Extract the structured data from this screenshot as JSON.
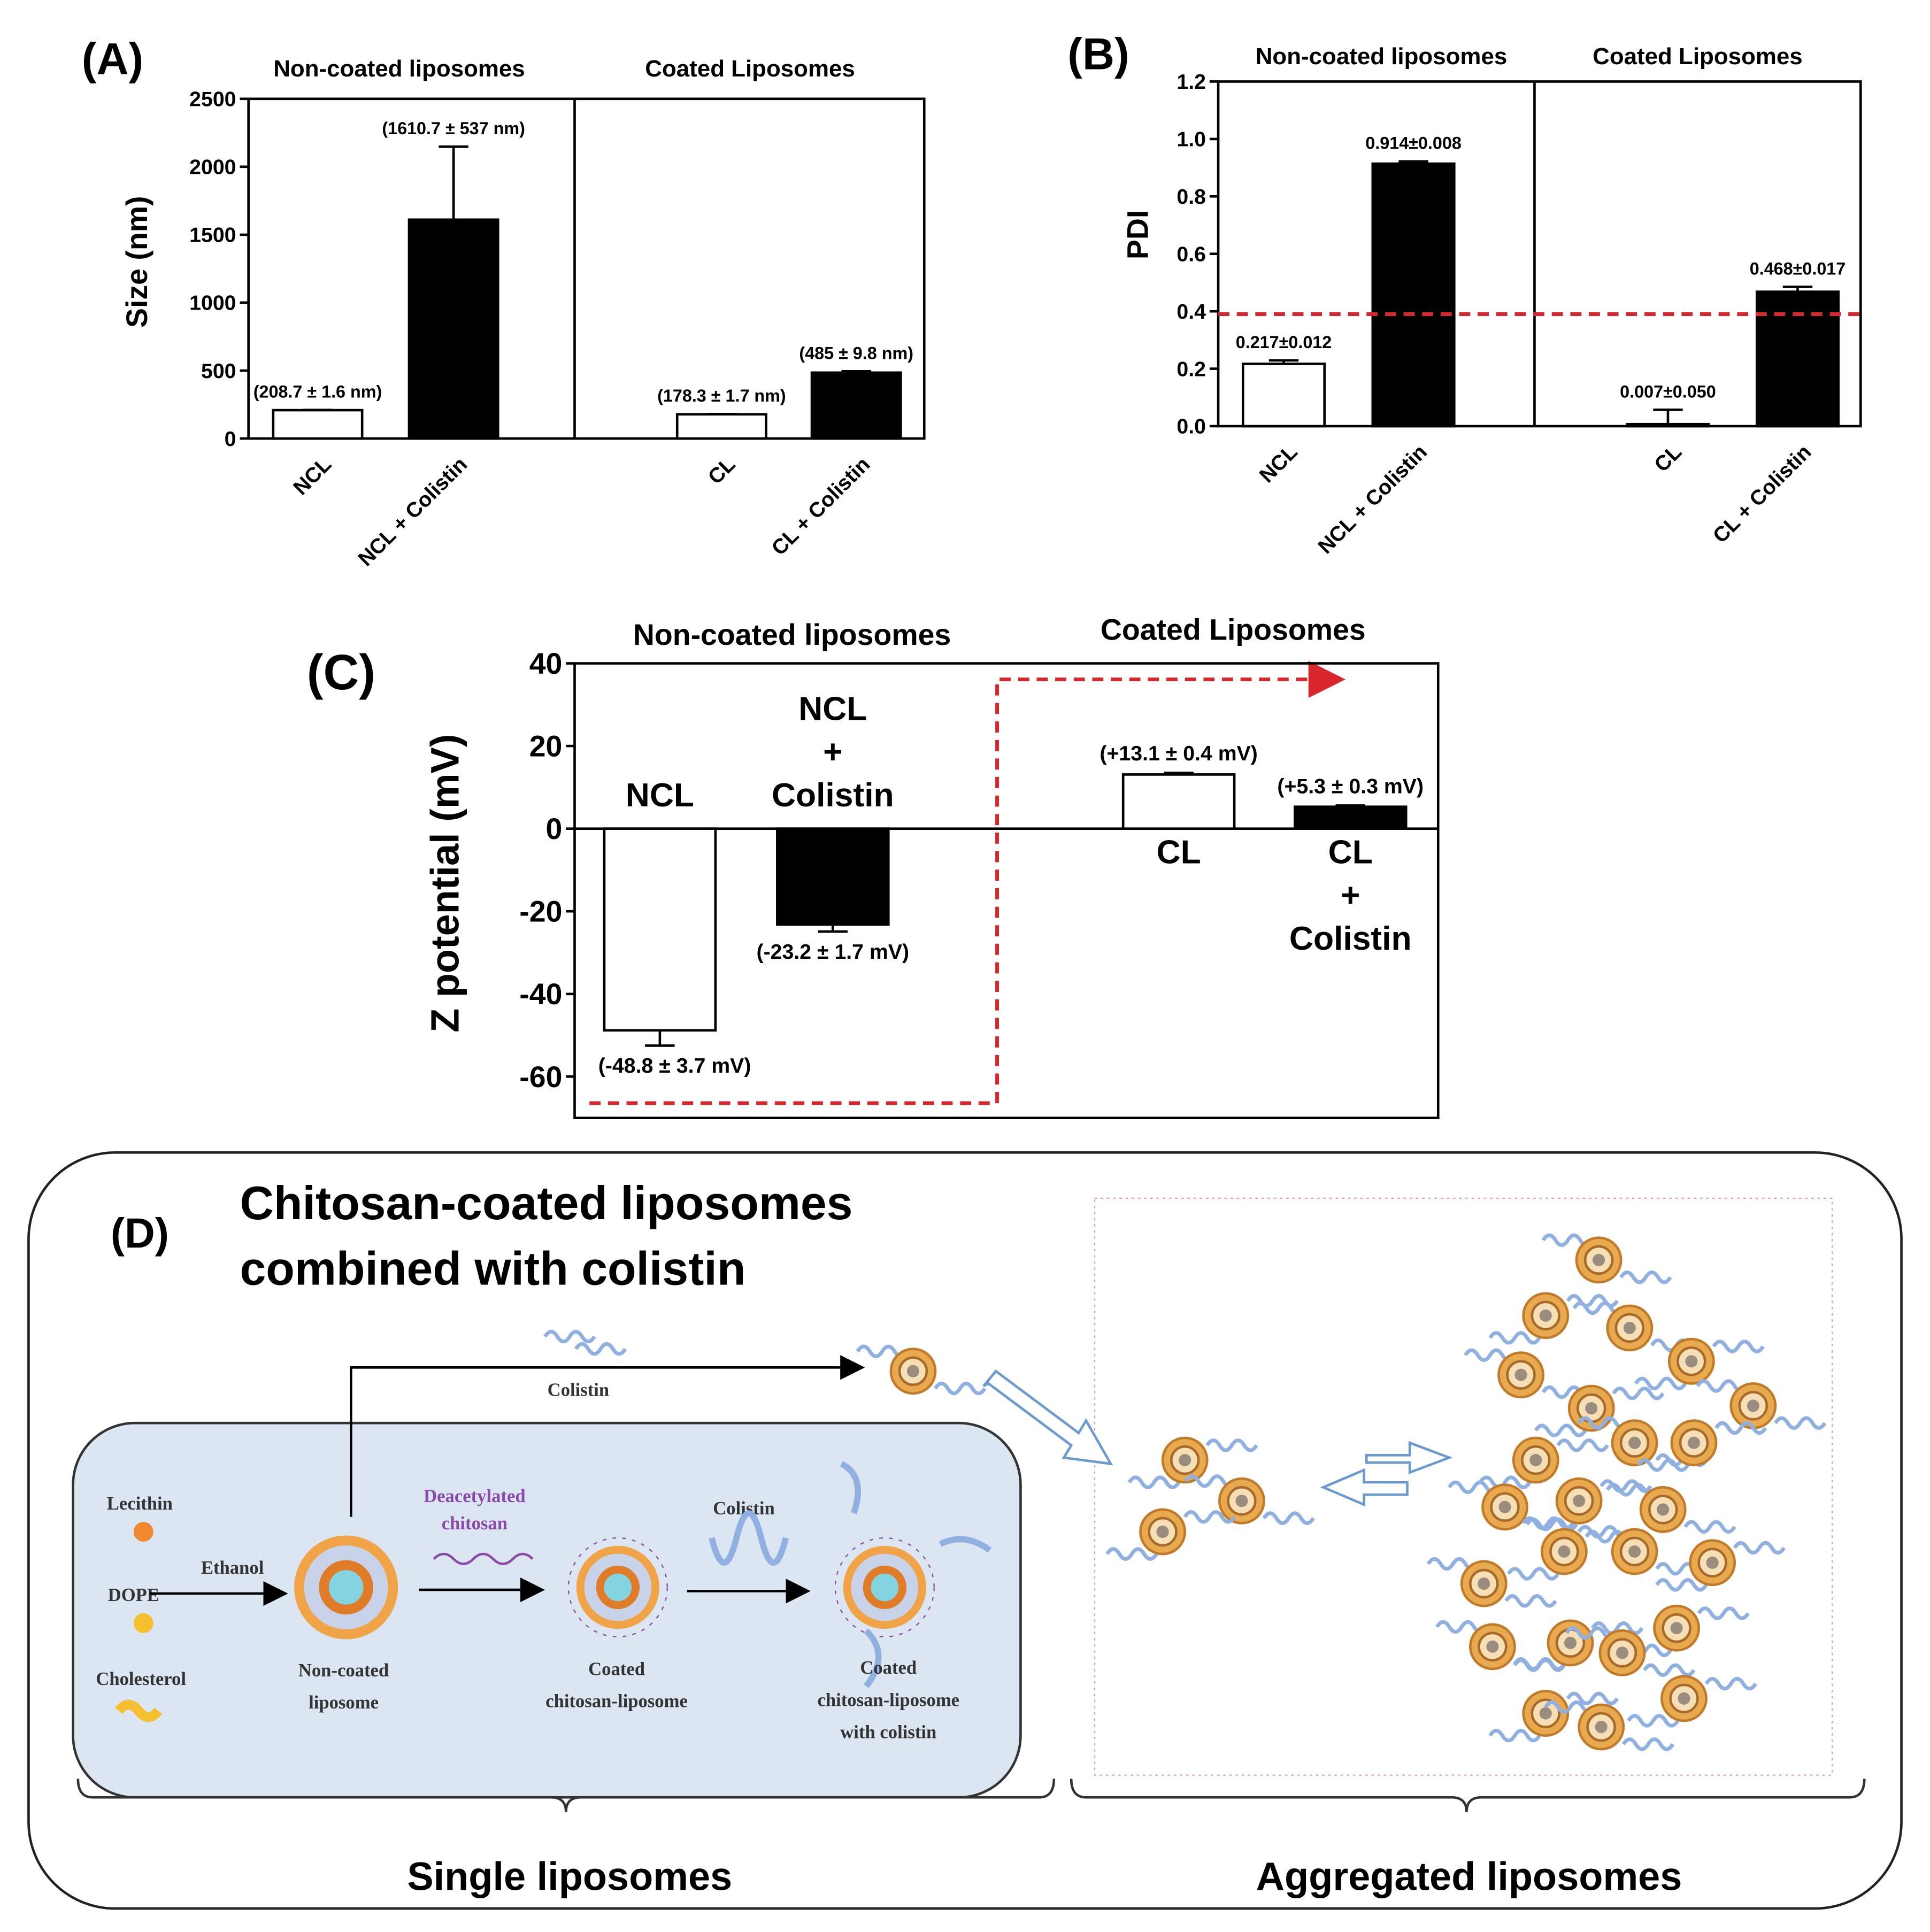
{
  "chart_data": [
    {
      "type": "bar",
      "panel_label": "(A)",
      "group_labels": [
        "Non-coated liposomes",
        "Coated Liposomes"
      ],
      "ylabel": "Size (nm)",
      "categories": [
        "NCL",
        "NCL + Colistin",
        "CL",
        "CL + Colistin"
      ],
      "values": [
        208.7,
        1610.7,
        178.3,
        485
      ],
      "errors": [
        1.6,
        537,
        1.7,
        9.8
      ],
      "value_labels": [
        "(208.7 ± 1.6 nm)",
        "(1610.7 ± 537 nm)",
        "(178.3 ± 1.7 nm)",
        "(485 ± 9.8 nm)"
      ],
      "colors": [
        "#ffffff",
        "#000000",
        "#ffffff",
        "#000000"
      ],
      "ylim": [
        0,
        2500
      ],
      "yticks": [
        0,
        500,
        1000,
        1500,
        2000,
        2500
      ]
    },
    {
      "type": "bar",
      "panel_label": "(B)",
      "group_labels": [
        "Non-coated liposomes",
        "Coated Liposomes"
      ],
      "ylabel": "PDI",
      "categories": [
        "NCL",
        "NCL + Colistin",
        "CL",
        "CL + Colistin"
      ],
      "values": [
        0.217,
        0.914,
        0.007,
        0.468
      ],
      "errors": [
        0.012,
        0.008,
        0.05,
        0.017
      ],
      "value_labels": [
        "0.217±0.012",
        "0.914±0.008",
        "0.007±0.050",
        "0.468±0.017"
      ],
      "colors": [
        "#ffffff",
        "#000000",
        "#ffffff",
        "#000000"
      ],
      "ylim": [
        0,
        1.2
      ],
      "yticks": [
        {
          "value": 0,
          "label": "0.0"
        },
        0.2,
        0.4,
        0.6,
        0.8,
        {
          "value": 1,
          "label": "1.0"
        },
        1.2
      ],
      "reference_line": 0.39,
      "reference_color": "#d9262c"
    },
    {
      "type": "bar",
      "panel_label": "(C)",
      "group_labels": [
        "Non-coated liposomes",
        "Coated Liposomes"
      ],
      "ylabel": "Z potential (mV)",
      "categories": [
        "NCL",
        "NCL + Colistin",
        "CL",
        "CL + Colistin"
      ],
      "values": [
        -48.8,
        -23.2,
        13.1,
        5.3
      ],
      "errors": [
        3.7,
        1.7,
        0.4,
        0.3
      ],
      "value_labels": [
        "(-48.8 ± 3.7 mV)",
        "(-23.2 ± 1.7 mV)",
        "(+13.1 ± 0.4 mV)",
        "(+5.3 ± 0.3 mV)"
      ],
      "colors": [
        "#ffffff",
        "#000000",
        "#ffffff",
        "#000000"
      ],
      "ylim": [
        -70,
        40
      ],
      "yticks": [
        -60,
        -40,
        -20,
        0,
        20,
        40
      ]
    }
  ],
  "diagram": {
    "panel_label": "(D)",
    "title": [
      "Chitosan-coated liposomes",
      "combined with colistin"
    ],
    "colistin_top": "Colistin",
    "components": [
      "Lecithin",
      "DOPE",
      "Cholesterol"
    ],
    "ethanol": "Ethanol",
    "non_coated": [
      "Non-coated",
      "liposome"
    ],
    "chitosan": [
      "Deacetylated",
      "chitosan"
    ],
    "coated": [
      "Coated",
      "chitosan-liposome"
    ],
    "colistin_step": "Colistin",
    "coated_colistin": [
      "Coated",
      "chitosan-liposome",
      "with colistin"
    ],
    "brackets": [
      "Single liposomes",
      "Aggregated liposomes"
    ]
  }
}
